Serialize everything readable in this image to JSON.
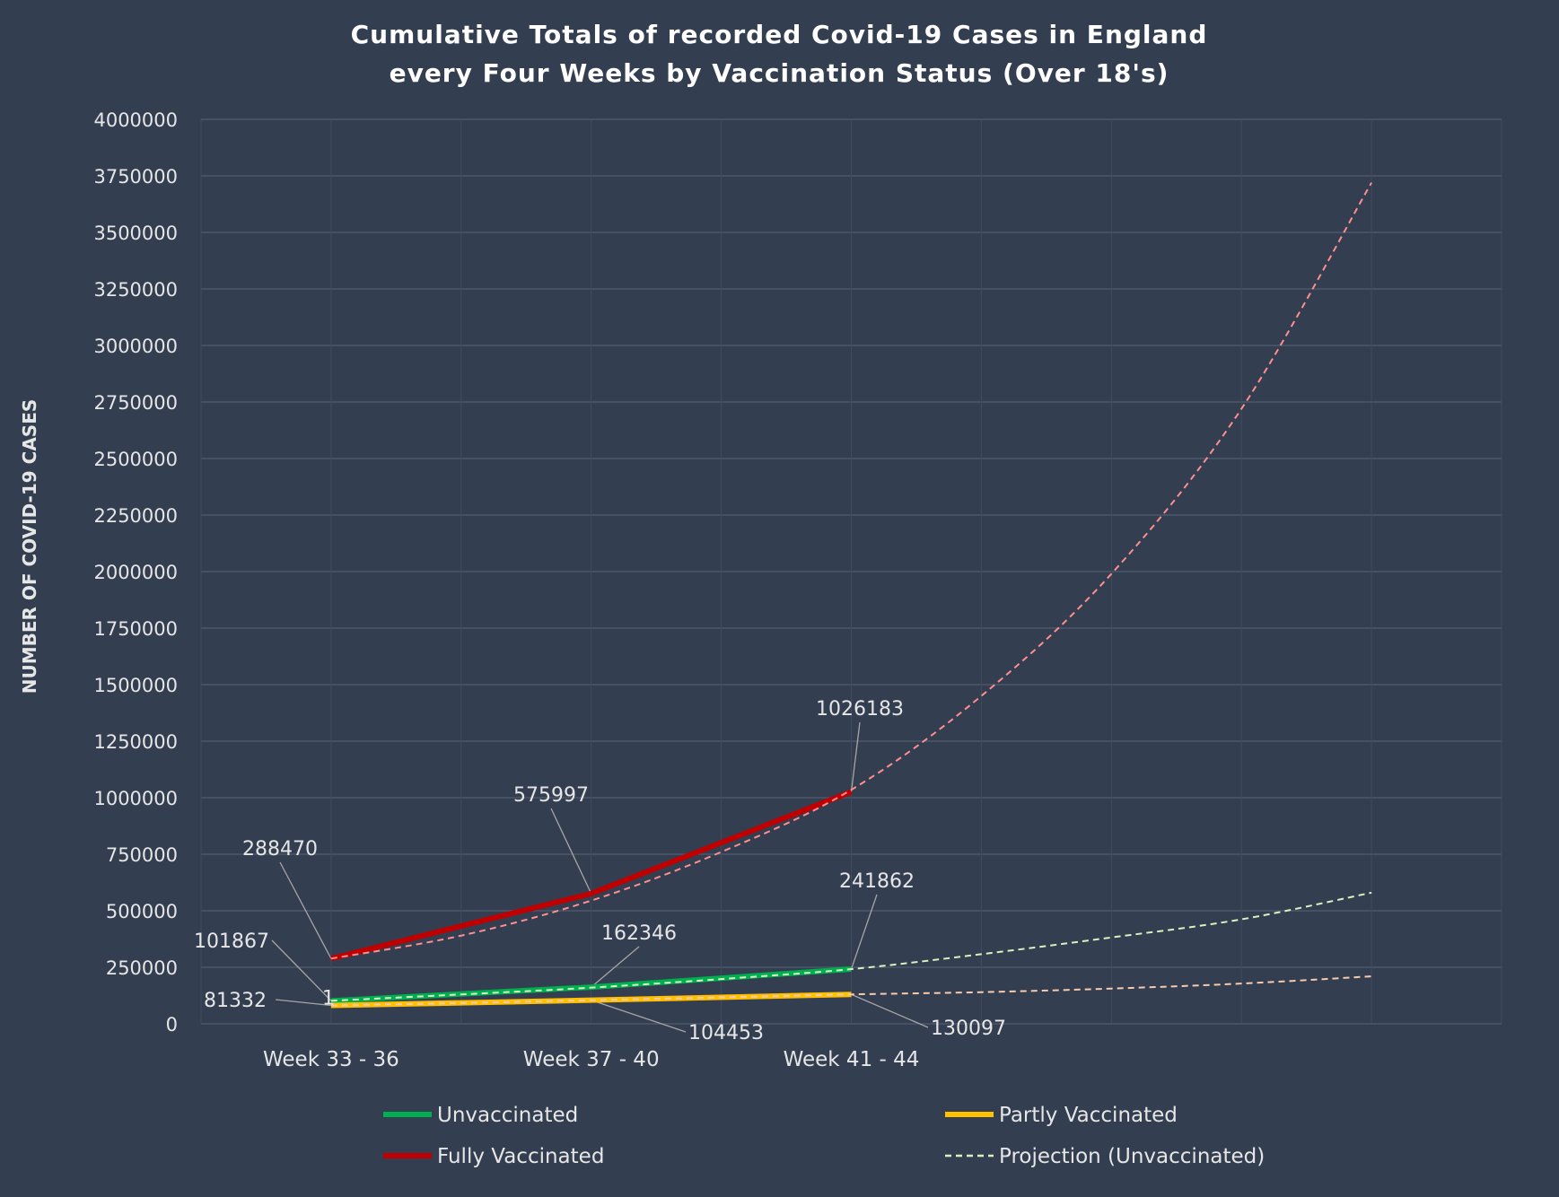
{
  "chart_data": {
    "type": "line",
    "title": [
      "Cumulative Totals of recorded Covid-19 Cases in England",
      "every Four Weeks by Vaccination Status (Over 18's)"
    ],
    "ylabel": "NUMBER OF COVID-19 CASES",
    "xlabel": "",
    "ylim": [
      0,
      4000000
    ],
    "yticks": [
      "0",
      "250000",
      "500000",
      "750000",
      "1000000",
      "1250000",
      "1500000",
      "1750000",
      "2000000",
      "2250000",
      "2500000",
      "2750000",
      "3000000",
      "3250000",
      "3500000",
      "3750000",
      "4000000"
    ],
    "categories": [
      "Week 33 - 36",
      "Week 37 - 40",
      "Week 41 - 44"
    ],
    "grid": true,
    "legend_placement": "bottom",
    "series": [
      {
        "name": "Unvaccinated",
        "color": "#00b050",
        "values": [
          101867,
          162346,
          241862
        ],
        "labels": [
          "101867",
          "162346",
          "241862"
        ]
      },
      {
        "name": "Partly Vaccinated",
        "color": "#ffc000",
        "values": [
          81332,
          104453,
          130097
        ],
        "labels": [
          "81332",
          "104453",
          "130097"
        ]
      },
      {
        "name": "Fully Vaccinated",
        "color": "#c00000",
        "values": [
          288470,
          575997,
          1026183
        ],
        "labels": [
          "288470",
          "575997",
          "1026183"
        ]
      }
    ],
    "projections": [
      {
        "name": "Projection (Unvaccinated)",
        "color": "#d9f2c0",
        "in_legend": true,
        "values": [
          101867,
          130000,
          160000,
          198000,
          241862,
          308000,
          382000,
          462000,
          580000
        ]
      },
      {
        "name": "Projection (Fully Vaccinated)",
        "color": "#ff8f8f",
        "in_legend": false,
        "values": [
          288470,
          390000,
          545000,
          760000,
          1035000,
          1450000,
          1990000,
          2720000,
          3720000
        ]
      },
      {
        "name": "Projection (Partly Vaccinated)",
        "color": "#f8cbad",
        "in_legend": false,
        "values": [
          81332,
          92000,
          104453,
          117000,
          130097,
          140000,
          156000,
          178000,
          210000
        ]
      }
    ],
    "stray_label": "1"
  }
}
